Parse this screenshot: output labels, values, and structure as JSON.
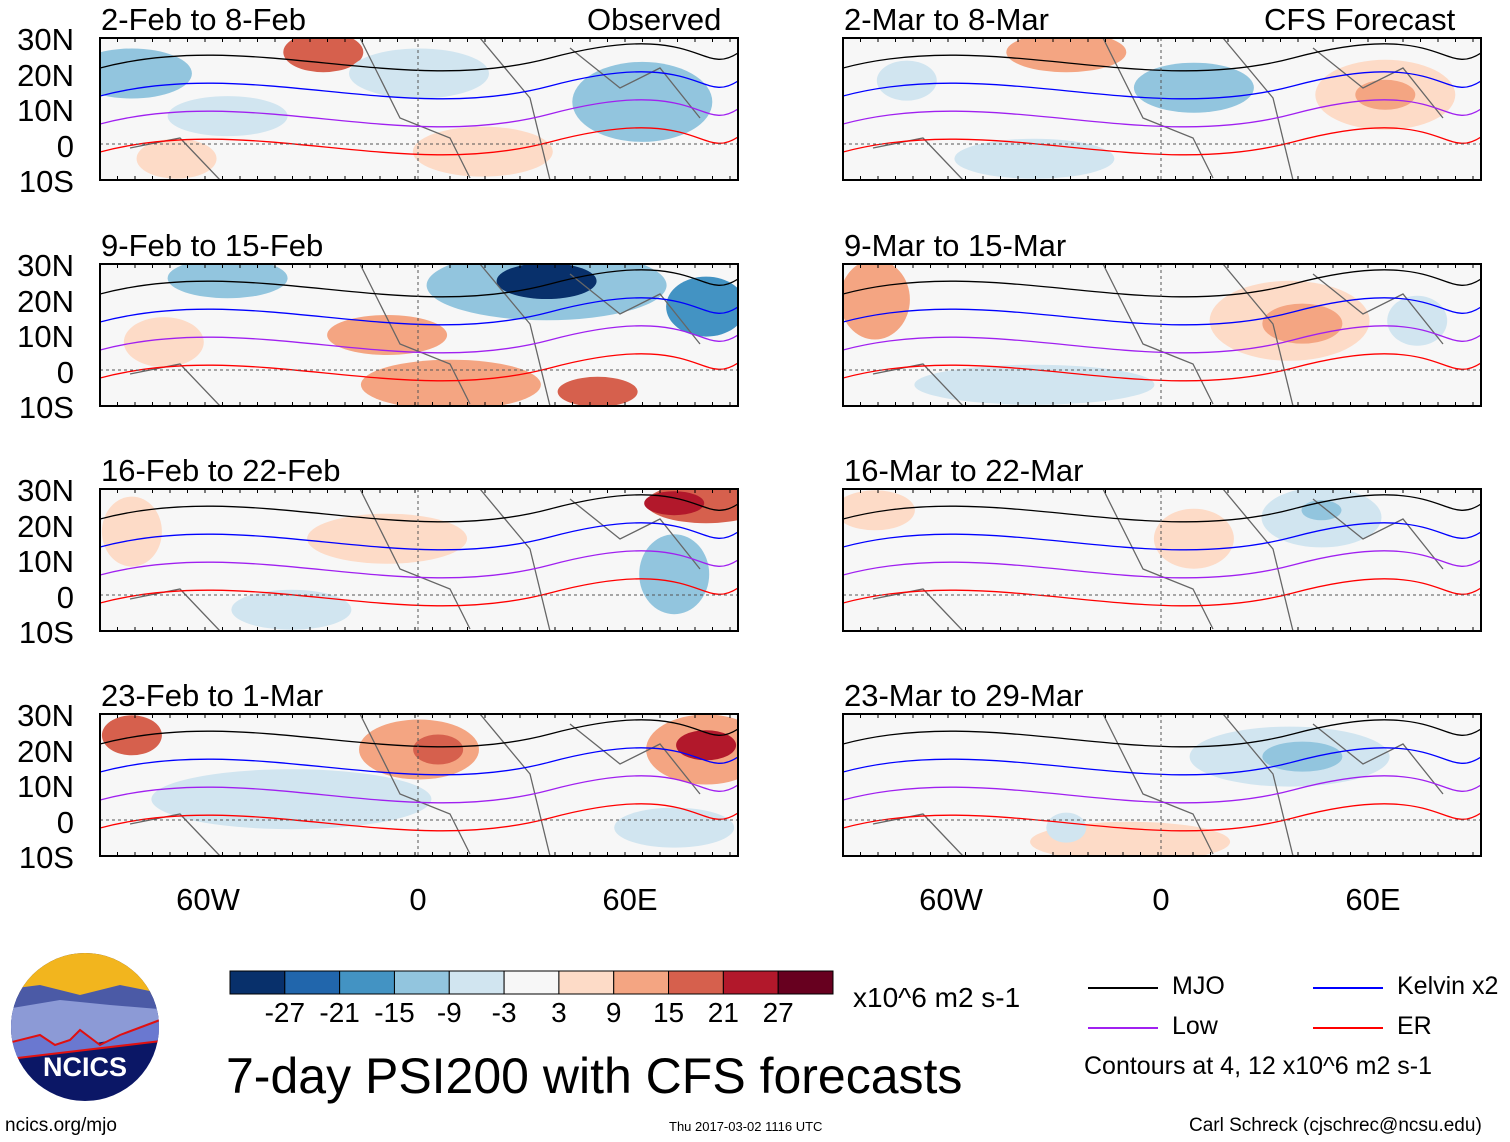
{
  "header": {
    "left_label": "Observed",
    "right_label": "CFS Forecast"
  },
  "panels": [
    {
      "title": "2-Feb to 8-Feb",
      "column": "observed"
    },
    {
      "title": "9-Feb to 15-Feb",
      "column": "observed"
    },
    {
      "title": "16-Feb to 22-Feb",
      "column": "observed"
    },
    {
      "title": "23-Feb to 1-Mar",
      "column": "observed"
    },
    {
      "title": "2-Mar to 8-Mar",
      "column": "forecast"
    },
    {
      "title": "9-Mar to 15-Mar",
      "column": "forecast"
    },
    {
      "title": "16-Mar to 22-Mar",
      "column": "forecast"
    },
    {
      "title": "23-Mar to 29-Mar",
      "column": "forecast"
    }
  ],
  "lat_labels": [
    "30N",
    "20N",
    "10N",
    "0",
    "10S"
  ],
  "lon_labels": [
    "60W",
    "0",
    "60E"
  ],
  "colorbar": {
    "colors": [
      "#08306b",
      "#2166ac",
      "#4393c3",
      "#92c5de",
      "#d1e5f0",
      "#f7f7f7",
      "#fddbc7",
      "#f4a582",
      "#d6604d",
      "#b2182b",
      "#67001f"
    ],
    "labels": [
      "-27",
      "-21",
      "-15",
      "-9",
      "-3",
      "3",
      "9",
      "15",
      "21",
      "27"
    ],
    "units": "x10^6 m2 s-1"
  },
  "title": "7-day PSI200 with CFS forecasts",
  "timestamp": "Thu 2017-03-02 1116 UTC",
  "legend": {
    "items": [
      {
        "label": "MJO",
        "color": "#000000"
      },
      {
        "label": "Kelvin x2",
        "color": "#0000ff"
      },
      {
        "label": "Low",
        "color": "#a020f0"
      },
      {
        "label": "ER",
        "color": "#ff0000"
      }
    ],
    "note": "Contours at 4, 12 x10^6 m2 s-1"
  },
  "logo": {
    "text": "NCICS"
  },
  "footer": {
    "url": "ncics.org/mjo",
    "credit": "Carl Schreck (cjschrec@ncsu.edu)"
  }
}
